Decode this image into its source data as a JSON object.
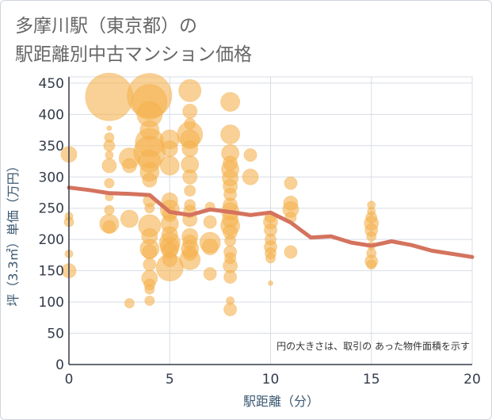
{
  "title_line1": "多摩川駅（東京都）の",
  "title_line2": "駅距離別中古マンション価格",
  "chart_data": {
    "type": "scatter",
    "xlabel": "駅距離（分）",
    "ylabel": "坪（3.3㎡）単価（万円）",
    "xlim": [
      0,
      20
    ],
    "ylim": [
      0,
      460
    ],
    "xticks": [
      "0",
      "5",
      "10",
      "15",
      "20"
    ],
    "yticks": [
      "0",
      "50",
      "100",
      "150",
      "200",
      "250",
      "300",
      "350",
      "400",
      "450"
    ],
    "note": "円の大きさは、取引の あった物件面積を示す",
    "bubble_color": "#f5b350",
    "line_color": "#d4735e",
    "points": [
      {
        "x": 0,
        "y": 336,
        "s": 10
      },
      {
        "x": 0,
        "y": 237,
        "s": 5
      },
      {
        "x": 0,
        "y": 228,
        "s": 6
      },
      {
        "x": 0,
        "y": 177,
        "s": 5
      },
      {
        "x": 0,
        "y": 150,
        "s": 9
      },
      {
        "x": 2,
        "y": 428,
        "s": 30
      },
      {
        "x": 2,
        "y": 378,
        "s": 3
      },
      {
        "x": 2,
        "y": 363,
        "s": 6
      },
      {
        "x": 2,
        "y": 350,
        "s": 7
      },
      {
        "x": 2,
        "y": 335,
        "s": 5
      },
      {
        "x": 2,
        "y": 318,
        "s": 9
      },
      {
        "x": 2,
        "y": 290,
        "s": 6
      },
      {
        "x": 2,
        "y": 268,
        "s": 5
      },
      {
        "x": 2,
        "y": 247,
        "s": 6
      },
      {
        "x": 2,
        "y": 225,
        "s": 12
      },
      {
        "x": 2,
        "y": 220,
        "s": 8
      },
      {
        "x": 3,
        "y": 330,
        "s": 13
      },
      {
        "x": 3,
        "y": 318,
        "s": 9
      },
      {
        "x": 3,
        "y": 233,
        "s": 11
      },
      {
        "x": 3,
        "y": 98,
        "s": 6
      },
      {
        "x": 4,
        "y": 430,
        "s": 28
      },
      {
        "x": 4,
        "y": 420,
        "s": 22
      },
      {
        "x": 4,
        "y": 400,
        "s": 16
      },
      {
        "x": 4,
        "y": 375,
        "s": 12
      },
      {
        "x": 4,
        "y": 355,
        "s": 18
      },
      {
        "x": 4,
        "y": 340,
        "s": 20
      },
      {
        "x": 4,
        "y": 325,
        "s": 14
      },
      {
        "x": 4,
        "y": 308,
        "s": 12
      },
      {
        "x": 4,
        "y": 295,
        "s": 9
      },
      {
        "x": 4,
        "y": 262,
        "s": 8
      },
      {
        "x": 4,
        "y": 250,
        "s": 6
      },
      {
        "x": 4,
        "y": 222,
        "s": 14
      },
      {
        "x": 4,
        "y": 205,
        "s": 10
      },
      {
        "x": 4,
        "y": 185,
        "s": 12
      },
      {
        "x": 4,
        "y": 180,
        "s": 9
      },
      {
        "x": 4,
        "y": 160,
        "s": 8
      },
      {
        "x": 4,
        "y": 138,
        "s": 10
      },
      {
        "x": 4,
        "y": 128,
        "s": 7
      },
      {
        "x": 4,
        "y": 120,
        "s": 6
      },
      {
        "x": 4,
        "y": 102,
        "s": 6
      },
      {
        "x": 5,
        "y": 360,
        "s": 12
      },
      {
        "x": 5,
        "y": 345,
        "s": 10
      },
      {
        "x": 5,
        "y": 318,
        "s": 12
      },
      {
        "x": 5,
        "y": 262,
        "s": 10
      },
      {
        "x": 5,
        "y": 248,
        "s": 12
      },
      {
        "x": 5,
        "y": 240,
        "s": 9
      },
      {
        "x": 5,
        "y": 225,
        "s": 11
      },
      {
        "x": 5,
        "y": 208,
        "s": 10
      },
      {
        "x": 5,
        "y": 195,
        "s": 13
      },
      {
        "x": 5,
        "y": 188,
        "s": 12
      },
      {
        "x": 5,
        "y": 182,
        "s": 10
      },
      {
        "x": 5,
        "y": 168,
        "s": 9
      },
      {
        "x": 5,
        "y": 155,
        "s": 17
      },
      {
        "x": 6,
        "y": 438,
        "s": 14
      },
      {
        "x": 6,
        "y": 405,
        "s": 9
      },
      {
        "x": 6,
        "y": 385,
        "s": 7
      },
      {
        "x": 6,
        "y": 368,
        "s": 16
      },
      {
        "x": 6,
        "y": 360,
        "s": 12
      },
      {
        "x": 6,
        "y": 345,
        "s": 10
      },
      {
        "x": 6,
        "y": 320,
        "s": 11
      },
      {
        "x": 6,
        "y": 300,
        "s": 9
      },
      {
        "x": 6,
        "y": 278,
        "s": 7
      },
      {
        "x": 6,
        "y": 255,
        "s": 7
      },
      {
        "x": 6,
        "y": 245,
        "s": 8
      },
      {
        "x": 6,
        "y": 232,
        "s": 9
      },
      {
        "x": 6,
        "y": 205,
        "s": 10
      },
      {
        "x": 6,
        "y": 196,
        "s": 9
      },
      {
        "x": 6,
        "y": 185,
        "s": 11
      },
      {
        "x": 6,
        "y": 178,
        "s": 9
      },
      {
        "x": 6,
        "y": 168,
        "s": 13
      },
      {
        "x": 7,
        "y": 252,
        "s": 6
      },
      {
        "x": 7,
        "y": 228,
        "s": 8
      },
      {
        "x": 7,
        "y": 195,
        "s": 13
      },
      {
        "x": 7,
        "y": 188,
        "s": 10
      },
      {
        "x": 7,
        "y": 145,
        "s": 8
      },
      {
        "x": 8,
        "y": 420,
        "s": 12
      },
      {
        "x": 8,
        "y": 368,
        "s": 12
      },
      {
        "x": 8,
        "y": 338,
        "s": 11
      },
      {
        "x": 8,
        "y": 322,
        "s": 9
      },
      {
        "x": 8,
        "y": 312,
        "s": 11
      },
      {
        "x": 8,
        "y": 298,
        "s": 10
      },
      {
        "x": 8,
        "y": 285,
        "s": 9
      },
      {
        "x": 8,
        "y": 272,
        "s": 8
      },
      {
        "x": 8,
        "y": 255,
        "s": 9
      },
      {
        "x": 8,
        "y": 245,
        "s": 11
      },
      {
        "x": 8,
        "y": 232,
        "s": 10
      },
      {
        "x": 8,
        "y": 222,
        "s": 12
      },
      {
        "x": 8,
        "y": 212,
        "s": 9
      },
      {
        "x": 8,
        "y": 198,
        "s": 7
      },
      {
        "x": 8,
        "y": 180,
        "s": 8
      },
      {
        "x": 8,
        "y": 170,
        "s": 7
      },
      {
        "x": 8,
        "y": 158,
        "s": 9
      },
      {
        "x": 8,
        "y": 140,
        "s": 8
      },
      {
        "x": 8,
        "y": 102,
        "s": 5
      },
      {
        "x": 8,
        "y": 88,
        "s": 8
      },
      {
        "x": 9,
        "y": 335,
        "s": 8
      },
      {
        "x": 9,
        "y": 300,
        "s": 10
      },
      {
        "x": 10,
        "y": 236,
        "s": 7
      },
      {
        "x": 10,
        "y": 228,
        "s": 9
      },
      {
        "x": 10,
        "y": 215,
        "s": 8
      },
      {
        "x": 10,
        "y": 200,
        "s": 7
      },
      {
        "x": 10,
        "y": 188,
        "s": 8
      },
      {
        "x": 10,
        "y": 178,
        "s": 7
      },
      {
        "x": 10,
        "y": 170,
        "s": 6
      },
      {
        "x": 10,
        "y": 130,
        "s": 3
      },
      {
        "x": 11,
        "y": 290,
        "s": 8
      },
      {
        "x": 11,
        "y": 258,
        "s": 9
      },
      {
        "x": 11,
        "y": 248,
        "s": 10
      },
      {
        "x": 11,
        "y": 235,
        "s": 7
      },
      {
        "x": 11,
        "y": 180,
        "s": 8
      },
      {
        "x": 15,
        "y": 255,
        "s": 5
      },
      {
        "x": 15,
        "y": 245,
        "s": 5
      },
      {
        "x": 15,
        "y": 235,
        "s": 7
      },
      {
        "x": 15,
        "y": 226,
        "s": 9
      },
      {
        "x": 15,
        "y": 215,
        "s": 8
      },
      {
        "x": 15,
        "y": 205,
        "s": 6
      },
      {
        "x": 15,
        "y": 190,
        "s": 5
      },
      {
        "x": 15,
        "y": 178,
        "s": 6
      },
      {
        "x": 15,
        "y": 165,
        "s": 8
      },
      {
        "x": 15,
        "y": 160,
        "s": 6
      }
    ],
    "trend": {
      "x": [
        0,
        1,
        2,
        3,
        4,
        5,
        6,
        7,
        8,
        9,
        10,
        11,
        12,
        13,
        14,
        15,
        16,
        17,
        18,
        19,
        20
      ],
      "y": [
        283,
        279,
        274,
        273,
        271,
        244,
        239,
        248,
        244,
        239,
        243,
        227,
        203,
        205,
        195,
        190,
        197,
        191,
        182,
        177,
        172
      ]
    }
  }
}
